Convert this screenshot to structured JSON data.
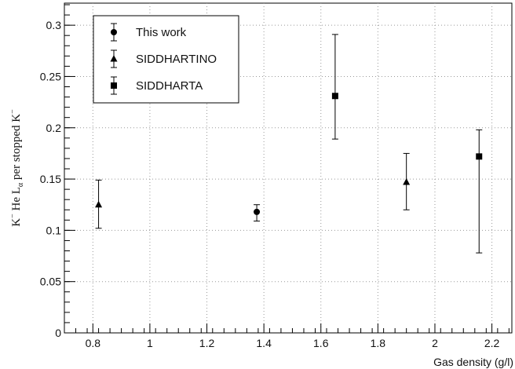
{
  "chart_data": {
    "type": "scatter",
    "xlabel": "Gas density (g/l)",
    "ylabel": {
      "part1": "K",
      "sup1": "−",
      "part2": " He L",
      "sub": "α",
      "part3": " per stopped K",
      "sup2": "−"
    },
    "xlim": [
      0.7,
      2.27
    ],
    "ylim": [
      0,
      0.32
    ],
    "xticks": [
      0.8,
      1,
      1.2,
      1.4,
      1.6,
      1.8,
      2,
      2.2
    ],
    "xtick_labels": [
      "0.8",
      "1",
      "1.2",
      "1.4",
      "1.6",
      "1.8",
      "2",
      "2.2"
    ],
    "yticks": [
      0,
      0.05,
      0.1,
      0.15,
      0.2,
      0.25,
      0.3
    ],
    "ytick_labels": [
      "0",
      "0.05",
      "0.1",
      "0.15",
      "0.2",
      "0.25",
      "0.3"
    ],
    "grid": true,
    "legend_position": "top-left",
    "series": [
      {
        "name": "This work",
        "marker": "circle",
        "points": [
          {
            "x": 1.375,
            "y": 0.118,
            "yerr_low": 0.009,
            "yerr_high": 0.007
          }
        ]
      },
      {
        "name": "SIDDHARTINO",
        "marker": "triangle",
        "points": [
          {
            "x": 0.82,
            "y": 0.125,
            "yerr_low": 0.023,
            "yerr_high": 0.024
          },
          {
            "x": 1.9,
            "y": 0.147,
            "yerr_low": 0.027,
            "yerr_high": 0.028
          }
        ]
      },
      {
        "name": "SIDDHARTA",
        "marker": "square",
        "points": [
          {
            "x": 1.65,
            "y": 0.231,
            "yerr_low": 0.042,
            "yerr_high": 0.06
          },
          {
            "x": 2.155,
            "y": 0.172,
            "yerr_low": 0.094,
            "yerr_high": 0.026
          }
        ]
      }
    ]
  }
}
